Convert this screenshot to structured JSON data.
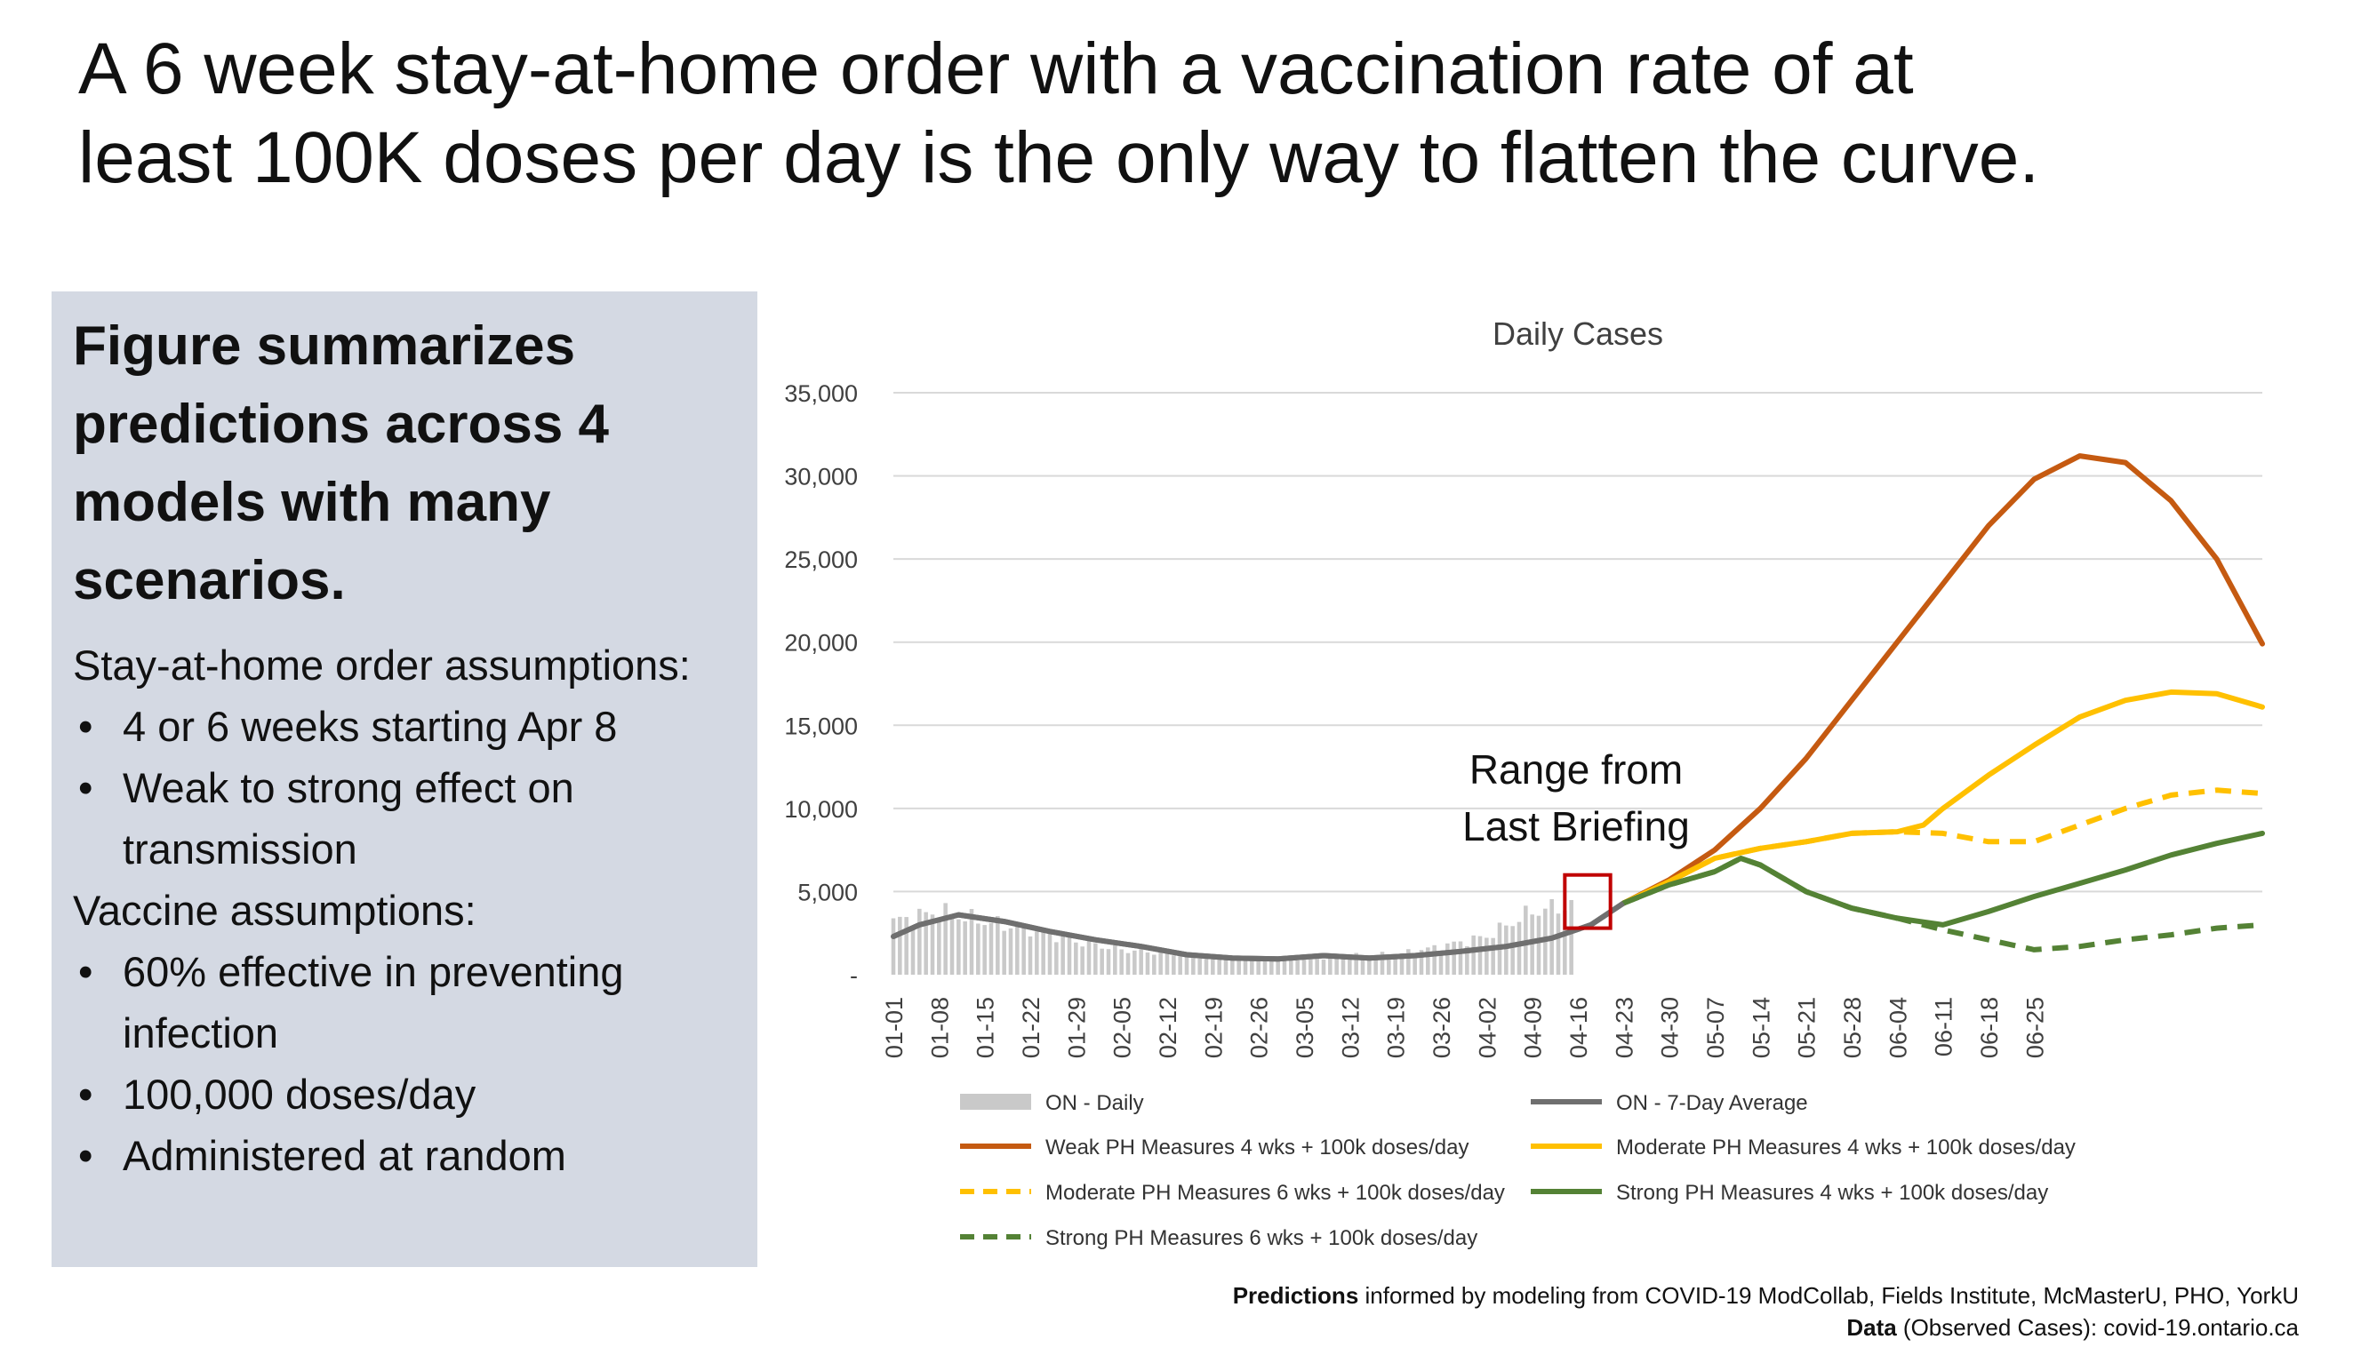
{
  "slide": {
    "title_line1": "A 6 week stay-at-home order with a vaccination rate of at",
    "title_line2": "least 100K doses per day is the only way to flatten the curve."
  },
  "panel": {
    "heading": "Figure summarizes predictions across 4 models with many scenarios.",
    "stay_label": "Stay-at-home order assumptions:",
    "stay_items": [
      "4 or 6 weeks starting Apr 8",
      "Weak to strong effect on transmission"
    ],
    "vaccine_label": "Vaccine assumptions:",
    "vaccine_items": [
      "60% effective in preventing infection",
      "100,000 doses/day",
      "Administered at random"
    ]
  },
  "footer": {
    "line1_bold": "Predictions",
    "line1_rest": " informed by modeling from COVID-19 ModCollab, Fields Institute, McMasterU, PHO, YorkU",
    "line2_bold": "Data",
    "line2_rest": " (Observed Cases): covid-19.ontario.ca"
  },
  "chart_data": {
    "type": "line",
    "title": "Daily Cases",
    "ylim": [
      0,
      35000
    ],
    "y_ticks": [
      0,
      5000,
      10000,
      15000,
      20000,
      25000,
      30000,
      35000
    ],
    "y_tick_labels": [
      "-",
      "5,000",
      "10,000",
      "15,000",
      "20,000",
      "25,000",
      "30,000",
      "35,000"
    ],
    "x_tick_labels": [
      "01-01",
      "01-08",
      "01-15",
      "01-22",
      "01-29",
      "02-05",
      "02-12",
      "02-19",
      "02-26",
      "03-05",
      "03-12",
      "03-19",
      "03-26",
      "04-02",
      "04-09",
      "04-16",
      "04-23",
      "04-30",
      "05-07",
      "05-14",
      "05-21",
      "05-28",
      "06-04",
      "06-11",
      "06-18",
      "06-25"
    ],
    "grid": true,
    "legend_position": "bottom",
    "annotation": {
      "line1": "Range from",
      "line2": "Last Briefing",
      "box_x": [
        103,
        110
      ],
      "box_y": [
        2800,
        6000
      ],
      "color": "#c00000"
    },
    "series": [
      {
        "name": "ON - Daily",
        "style": "bar",
        "color": "#c9c9c9",
        "points": [
          [
            0,
            3200
          ],
          [
            7,
            3800
          ],
          [
            14,
            3200
          ],
          [
            21,
            2700
          ],
          [
            28,
            2000
          ],
          [
            35,
            1500
          ],
          [
            42,
            1300
          ],
          [
            49,
            1000
          ],
          [
            56,
            1000
          ],
          [
            63,
            1050
          ],
          [
            70,
            1100
          ],
          [
            77,
            1200
          ],
          [
            84,
            1700
          ],
          [
            91,
            2300
          ],
          [
            98,
            3800
          ],
          [
            104,
            4200
          ]
        ]
      },
      {
        "name": "ON - 7-Day Average",
        "style": "solid",
        "color": "#6f6f6f",
        "points": [
          [
            0,
            2300
          ],
          [
            4,
            3000
          ],
          [
            10,
            3600
          ],
          [
            17,
            3200
          ],
          [
            24,
            2600
          ],
          [
            31,
            2100
          ],
          [
            38,
            1700
          ],
          [
            45,
            1200
          ],
          [
            52,
            1000
          ],
          [
            59,
            950
          ],
          [
            66,
            1150
          ],
          [
            73,
            1000
          ],
          [
            80,
            1150
          ],
          [
            87,
            1400
          ],
          [
            94,
            1700
          ],
          [
            101,
            2200
          ],
          [
            107,
            3000
          ],
          [
            112,
            4300
          ]
        ]
      },
      {
        "name": "Weak PH Measures 4 wks + 100k doses/day",
        "style": "solid",
        "color": "#c55a11",
        "points": [
          [
            112,
            4300
          ],
          [
            119,
            5700
          ],
          [
            126,
            7500
          ],
          [
            133,
            10000
          ],
          [
            140,
            13000
          ],
          [
            147,
            16500
          ],
          [
            154,
            20000
          ],
          [
            161,
            23500
          ],
          [
            168,
            27000
          ],
          [
            175,
            29800
          ],
          [
            182,
            31200
          ],
          [
            189,
            30800
          ],
          [
            196,
            28500
          ],
          [
            203,
            25000
          ],
          [
            210,
            19900
          ]
        ]
      },
      {
        "name": "Moderate PH Measures 4 wks + 100k doses/day",
        "style": "solid",
        "color": "#ffc000",
        "points": [
          [
            112,
            4300
          ],
          [
            119,
            5600
          ],
          [
            126,
            7000
          ],
          [
            133,
            7600
          ],
          [
            140,
            8000
          ],
          [
            147,
            8500
          ],
          [
            154,
            8600
          ],
          [
            158,
            9000
          ],
          [
            161,
            10000
          ],
          [
            168,
            12000
          ],
          [
            175,
            13800
          ],
          [
            182,
            15500
          ],
          [
            189,
            16500
          ],
          [
            196,
            17000
          ],
          [
            203,
            16900
          ],
          [
            210,
            16100
          ]
        ]
      },
      {
        "name": "Moderate PH Measures 6 wks + 100k doses/day",
        "style": "dashed",
        "color": "#ffc000",
        "points": [
          [
            112,
            4300
          ],
          [
            119,
            5600
          ],
          [
            126,
            7000
          ],
          [
            133,
            7600
          ],
          [
            140,
            8000
          ],
          [
            147,
            8500
          ],
          [
            154,
            8600
          ],
          [
            161,
            8500
          ],
          [
            168,
            8000
          ],
          [
            175,
            8000
          ],
          [
            182,
            9000
          ],
          [
            189,
            10000
          ],
          [
            196,
            10800
          ],
          [
            203,
            11100
          ],
          [
            210,
            10900
          ]
        ]
      },
      {
        "name": "Strong PH Measures 4 wks + 100k doses/day",
        "style": "solid",
        "color": "#548235",
        "points": [
          [
            112,
            4300
          ],
          [
            119,
            5400
          ],
          [
            126,
            6200
          ],
          [
            130,
            7000
          ],
          [
            133,
            6600
          ],
          [
            140,
            5000
          ],
          [
            147,
            4000
          ],
          [
            154,
            3400
          ],
          [
            161,
            3000
          ],
          [
            168,
            3800
          ],
          [
            175,
            4700
          ],
          [
            182,
            5500
          ],
          [
            189,
            6300
          ],
          [
            196,
            7200
          ],
          [
            203,
            7900
          ],
          [
            210,
            8500
          ]
        ]
      },
      {
        "name": "Strong PH Measures 6 wks + 100k doses/day",
        "style": "dashed",
        "color": "#548235",
        "points": [
          [
            112,
            4300
          ],
          [
            119,
            5400
          ],
          [
            126,
            6200
          ],
          [
            130,
            7000
          ],
          [
            133,
            6600
          ],
          [
            140,
            5000
          ],
          [
            147,
            4000
          ],
          [
            154,
            3400
          ],
          [
            161,
            2700
          ],
          [
            168,
            2100
          ],
          [
            175,
            1500
          ],
          [
            182,
            1700
          ],
          [
            189,
            2100
          ],
          [
            196,
            2400
          ],
          [
            203,
            2800
          ],
          [
            210,
            3000
          ]
        ]
      }
    ]
  }
}
